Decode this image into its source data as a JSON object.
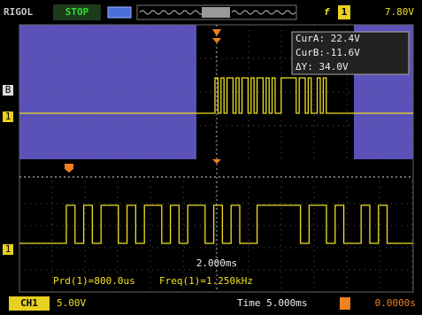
{
  "top_bar": {
    "brand": "RIGOL",
    "status": "STOP",
    "trigger_channel": "1",
    "trigger_level": "7.80V"
  },
  "cursors": [
    "CurA: 22.4V",
    "CurB:-11.6V",
    "ΔY: 34.0V"
  ],
  "zoom_label": "2.000ms",
  "measurements": [
    "Prd(1)=800.0us",
    "Freq(1)=1.250kHz"
  ],
  "channel_markers": {
    "ref": "B",
    "zoom": "1",
    "main": "1"
  },
  "bottom_bar": {
    "channel": "CH1",
    "volts_div": "5.00V",
    "timebase": "Time 5.000ms",
    "trigger_position": "0.0000s"
  }
}
